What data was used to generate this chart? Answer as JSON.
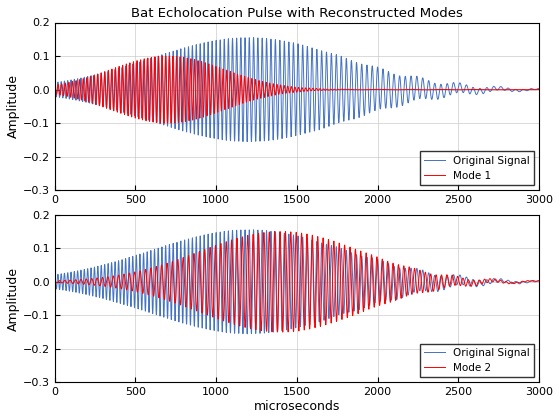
{
  "title": "Bat Echolocation Pulse with Reconstructed Modes",
  "xlabel": "microseconds",
  "ylabel": "Amplitude",
  "xlim": [
    0,
    3000
  ],
  "ylim": [
    -0.3,
    0.2
  ],
  "yticks": [
    -0.3,
    -0.2,
    -0.1,
    0.0,
    0.1,
    0.2
  ],
  "xticks": [
    0,
    500,
    1000,
    1500,
    2000,
    2500,
    3000
  ],
  "original_color": "#4472C4",
  "mode1_color": "#FF0000",
  "mode2_color": "#FF0000",
  "legend1": [
    "Original Signal",
    "Mode 1"
  ],
  "legend2": [
    "Original Signal",
    "Mode 2"
  ],
  "bg_color": "#FFFFFF",
  "grid_color": "#C0C0C0",
  "line_width": 0.7
}
